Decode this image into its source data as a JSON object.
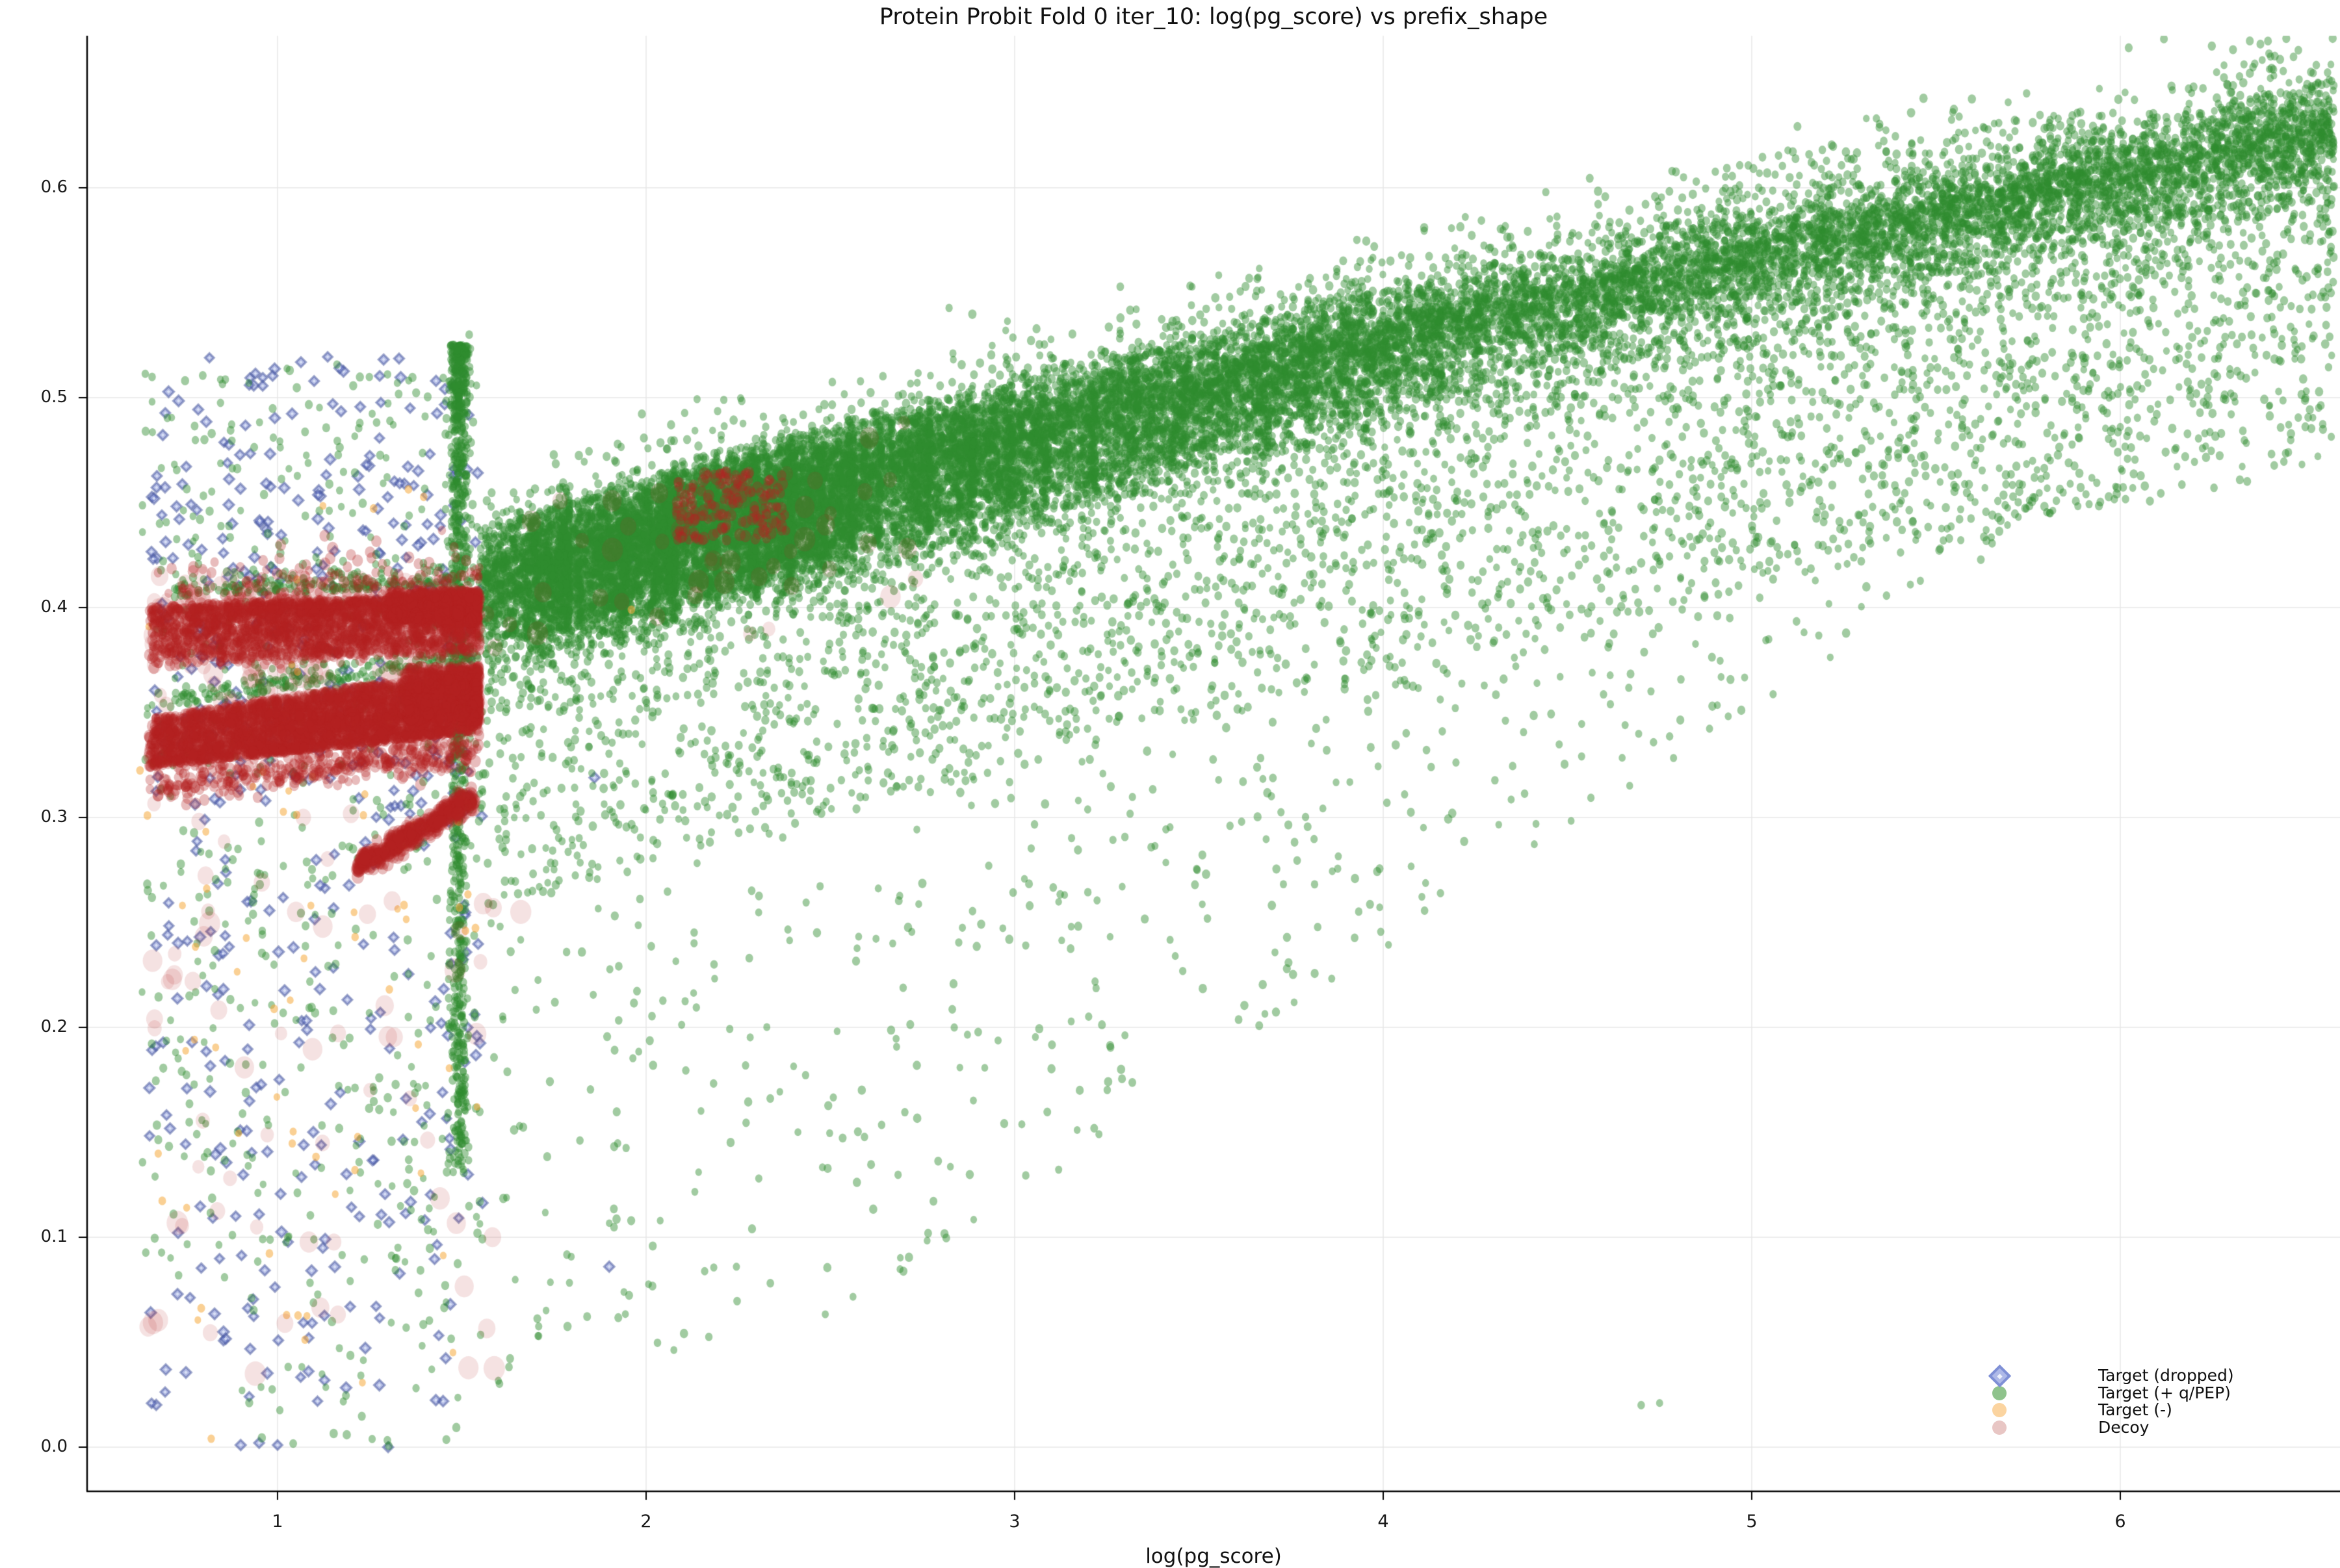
{
  "chart_data": {
    "type": "scatter",
    "title": "Protein Probit Fold 0 iter_10: log(pg_score) vs prefix_shape",
    "xlabel": "log(pg_score)",
    "ylabel": "",
    "x_ticks": [
      1,
      2,
      3,
      4,
      5,
      6
    ],
    "y_ticks": [
      0.0,
      0.1,
      0.2,
      0.3,
      0.4,
      0.5,
      0.6
    ],
    "xlim": [
      0.48,
      6.6
    ],
    "ylim": [
      -0.021,
      0.672
    ],
    "grid": true,
    "legend_position": "lower right",
    "legend": [
      {
        "label": "Target (dropped)",
        "marker": "diamond",
        "swatch": "#aeb9e8",
        "border": "#7f90d6"
      },
      {
        "label": "Target (+ q/PEP)",
        "marker": "circle",
        "swatch": "#8fc38c"
      },
      {
        "label": "Target (-)",
        "marker": "circle",
        "swatch": "#fbd4a0"
      },
      {
        "label": "Decoy",
        "marker": "circle",
        "swatch": "#e8c6c4"
      }
    ],
    "series_styles": {
      "target": {
        "color": "#2e8b2e",
        "alpha": 0.45,
        "marker": "circle",
        "r": [
          5.6,
          7.0
        ]
      },
      "dropped": {
        "face": "#6473c8",
        "faceAlpha": 0.5,
        "edge": "#46559b",
        "edgeAlpha": 0.5,
        "marker": "diamond",
        "r": [
          7.0,
          8.4
        ]
      },
      "neg": {
        "color": "#f5a93c",
        "alpha": 0.55,
        "marker": "circle",
        "r": [
          5.5,
          6.5
        ]
      },
      "decoy": {
        "color": "#b22222",
        "alpha": 0.3,
        "marker": "circle",
        "r": [
          6.5,
          9.5
        ],
        "bigR": [
          10,
          18
        ],
        "bigAlpha": 0.13
      }
    },
    "draw_order": [
      "dropped",
      "target",
      "neg",
      "decoy"
    ],
    "top_edge": [
      [
        1.55,
        0.437
      ],
      [
        2.2,
        0.469
      ],
      [
        3.0,
        0.506
      ],
      [
        4.0,
        0.551
      ],
      [
        5.0,
        0.592
      ],
      [
        6.0,
        0.63
      ],
      [
        6.58,
        0.652
      ]
    ],
    "clusters": [
      {
        "kind": "uniform_box",
        "series": "dropped",
        "count": 265,
        "x": [
          0.65,
          1.56
        ],
        "y": [
          0.3,
          0.468
        ]
      },
      {
        "kind": "uniform_box",
        "series": "dropped",
        "count": 195,
        "x": [
          0.65,
          1.56
        ],
        "y": [
          0.02,
          0.3
        ]
      },
      {
        "kind": "uniform_box",
        "series": "dropped",
        "count": 48,
        "x": [
          0.67,
          1.52
        ],
        "y": [
          0.468,
          0.52
        ]
      },
      {
        "kind": "points",
        "series": "dropped",
        "pts": [
          [
            1.94,
            0.438
          ],
          [
            1.86,
            0.319
          ],
          [
            1.957,
            0.423
          ],
          [
            1.9,
            0.086
          ],
          [
            0.9,
            0.001
          ],
          [
            0.95,
            0.002
          ],
          [
            1.0,
            0.001
          ],
          [
            1.3,
            0.0
          ],
          [
            1.43,
            0.508
          ],
          [
            1.5,
            0.512
          ]
        ]
      },
      {
        "kind": "main_cloud",
        "series": "target",
        "count": 16000,
        "x": [
          1.55,
          6.58
        ],
        "ridge": {
          "frac": 0.6,
          "sd": 0.02,
          "u": 0.024
        },
        "mid": {
          "frac": 0.25,
          "d0": 0.018,
          "pow": 1.4,
          "depth": 0.165
        },
        "tail": {
          "S0": 0.42,
          "slope": 0.075,
          "xref": 2.6,
          "Smin": 0.05,
          "pow": 1.9
        },
        "above": {
          "frac": 0.04,
          "sd": 0.013
        }
      },
      {
        "kind": "shingle_edges",
        "series": "target",
        "ks": [
          6,
          7,
          8,
          9,
          10,
          11,
          12,
          13,
          14,
          16,
          18,
          20,
          22,
          25,
          28,
          32,
          36,
          40,
          45,
          50,
          57,
          64,
          72
        ],
        "base": 800,
        "width": 0.27,
        "depth": 0.058,
        "xmin": 1.56
      },
      {
        "kind": "vstrip",
        "series": "target",
        "count": 950,
        "xc": 1.493,
        "sd": 0.013,
        "xmin": 1.445,
        "xmax": 1.547,
        "ytop": 0.525,
        "yrange": 0.395,
        "pow": 1.65
      },
      {
        "kind": "uniform_box",
        "series": "target",
        "count": 560,
        "x": [
          0.63,
          1.55
        ],
        "y": [
          0.08,
          0.52
        ]
      },
      {
        "kind": "uniform_box",
        "series": "target",
        "count": 45,
        "x": [
          0.9,
          1.5
        ],
        "y": [
          0.0,
          0.08
        ]
      },
      {
        "kind": "edge_hug",
        "series": "target",
        "count": 380,
        "x": [
          0.72,
          1.55
        ],
        "lines": [
          [
            0.396,
            0.007
          ],
          [
            0.33,
            0.0265
          ]
        ],
        "lift": 0.004,
        "sd": 0.005
      },
      {
        "kind": "points",
        "series": "target",
        "pts": [
          [
            4.7,
            0.02
          ],
          [
            4.75,
            0.021
          ],
          [
            1.52,
            0.53
          ],
          [
            0.68,
            0.44
          ],
          [
            6.52,
            0.648
          ]
        ]
      },
      {
        "kind": "uniform_box",
        "series": "neg",
        "count": 72,
        "x": [
          0.62,
          1.56
        ],
        "y": [
          0.02,
          0.46
        ]
      },
      {
        "kind": "points",
        "series": "neg",
        "pts": [
          [
            1.96,
            0.399
          ],
          [
            1.51,
            0.246
          ],
          [
            0.82,
            0.004
          ],
          [
            1.21,
            0.132
          ]
        ]
      },
      {
        "kind": "top_band",
        "series": "decoy",
        "count": 2600,
        "x": [
          0.65,
          1.55
        ],
        "xpow": 0.85,
        "line": [
          0.396,
          0.007
        ],
        "depth": 0.026,
        "dpow": 1.6,
        "above_frac": 0.05,
        "above_sd": 0.011
      },
      {
        "kind": "right_wedge",
        "series": "decoy",
        "count": 900,
        "xedge": 1.542,
        "width": 0.24,
        "xpow": 1.5,
        "y": [
          0.393,
          0.408
        ]
      },
      {
        "kind": "fill_band",
        "series": "decoy",
        "count": 3900,
        "x": [
          0.65,
          1.55
        ],
        "xpow": 0.9,
        "bottom": [
          0.312,
          0.019
        ],
        "top": [
          0.33,
          0.0265
        ],
        "pow": 1.2,
        "below_frac": 0.1,
        "below_ext": 0.012
      },
      {
        "kind": "right_wedge",
        "series": "decoy",
        "count": 700,
        "xedge": 1.545,
        "width": 0.2,
        "xpow": 1.5,
        "y": [
          0.346,
          0.372
        ]
      },
      {
        "kind": "streak",
        "series": "decoy",
        "count": 480,
        "p0": [
          1.215,
          0.2765
        ],
        "p1": [
          1.535,
          0.3095
        ],
        "sd": 0.0028
      },
      {
        "kind": "uniform_box",
        "series": "decoy",
        "count": 220,
        "x": [
          0.65,
          1.55
        ],
        "y": [
          0.345,
          0.415
        ],
        "big": true
      },
      {
        "kind": "uniform_box",
        "series": "decoy",
        "count": 60,
        "x": [
          0.63,
          1.6
        ],
        "y": [
          0.03,
          0.31
        ],
        "big": true
      },
      {
        "kind": "near_top",
        "series": "decoy",
        "count": 45,
        "x": [
          1.56,
          2.75
        ],
        "depth": 0.09,
        "big": true
      },
      {
        "kind": "uniform_box",
        "series": "decoy",
        "count": 170,
        "x": [
          2.08,
          2.38
        ],
        "y": [
          0.432,
          0.465
        ]
      },
      {
        "kind": "points",
        "series": "decoy",
        "big": true,
        "pts": [
          [
            0.94,
            0.035
          ],
          [
            1.02,
            0.059
          ],
          [
            1.25,
            0.17
          ],
          [
            0.72,
            0.225
          ],
          [
            0.77,
            0.222
          ],
          [
            1.05,
            0.255
          ],
          [
            1.66,
            0.255
          ],
          [
            1.59,
            0.381
          ],
          [
            0.68,
            0.415
          ],
          [
            1.07,
            0.3
          ]
        ]
      }
    ]
  }
}
